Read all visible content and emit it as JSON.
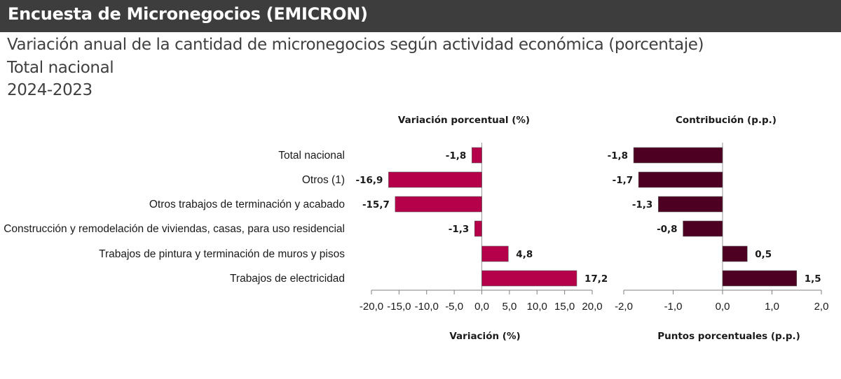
{
  "header": {
    "title": "Encuesta de Micronegocios (EMICRON)"
  },
  "subtitle_lines": [
    "Variación anual de la cantidad de micronegocios según actividad económica (porcentaje)",
    "Total nacional",
    "2024-2023"
  ],
  "chart_data": [
    {
      "type": "bar",
      "orientation": "horizontal",
      "title": "Variación porcentual (%)",
      "xlabel": "Variación (%)",
      "ylabel": "",
      "categories": [
        "Total nacional",
        "Otros (1)",
        "Otros trabajos de terminación y acabado",
        "Construcción y remodelación de viviendas, casas, para uso residencial",
        "Trabajos de pintura y terminación de muros y pisos",
        "Trabajos de electricidad"
      ],
      "values": [
        -1.8,
        -16.9,
        -15.7,
        -1.3,
        4.8,
        17.2
      ],
      "value_labels": [
        "-1,8",
        "-16,9",
        "-15,7",
        "-1,3",
        "4,8",
        "17,2"
      ],
      "xlim": [
        -20,
        20
      ],
      "ticks": [
        -20,
        -15,
        -10,
        -5,
        0,
        5,
        10,
        15,
        20
      ],
      "tick_labels": [
        "-20,0",
        "-15,0",
        "-10,0",
        "-5,0",
        "0,0",
        "5,0",
        "10,0",
        "15,0",
        "20,0"
      ],
      "color": "#b5004a",
      "grid": false
    },
    {
      "type": "bar",
      "orientation": "horizontal",
      "title": "Contribución (p.p.)",
      "xlabel": "Puntos porcentuales (p.p.)",
      "ylabel": "",
      "categories": [
        "Total nacional",
        "Otros (1)",
        "Otros trabajos de terminación y acabado",
        "Construcción y remodelación de viviendas, casas, para uso residencial",
        "Trabajos de pintura y terminación de muros y pisos",
        "Trabajos de electricidad"
      ],
      "values": [
        -1.8,
        -1.7,
        -1.3,
        -0.8,
        0.5,
        1.5
      ],
      "value_labels": [
        "-1,8",
        "-1,7",
        "-1,3",
        "-0,8",
        "0,5",
        "1,5"
      ],
      "xlim": [
        -2,
        2
      ],
      "ticks": [
        -2,
        -1,
        0,
        1,
        2
      ],
      "tick_labels": [
        "-2,0",
        "-1,0",
        "0,0",
        "1,0",
        "2,0"
      ],
      "color": "#4d0022",
      "grid": false
    }
  ]
}
